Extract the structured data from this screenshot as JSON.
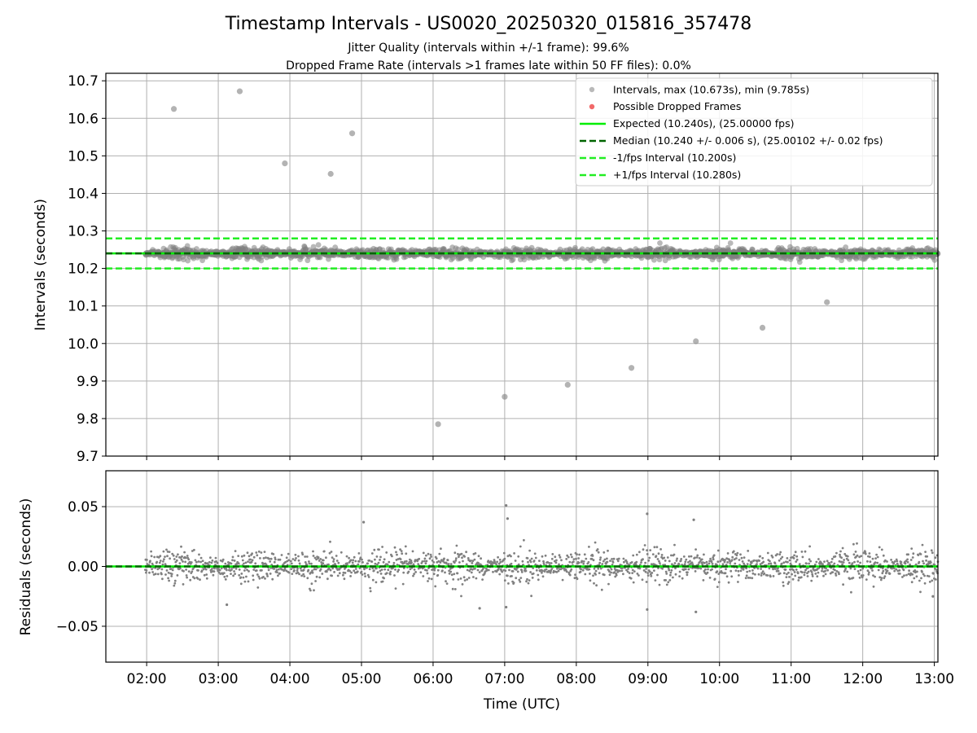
{
  "figure": {
    "title": "Timestamp Intervals - US0020_20250320_015816_357478",
    "subtitle_1": "Jitter Quality (intervals within +/-1 frame): 99.6%",
    "subtitle_2": "Dropped Frame Rate (intervals >1 frames late within 50 FF files): 0.0%"
  },
  "chart_data": [
    {
      "type": "scatter",
      "panel": "top",
      "xlabel": "",
      "ylabel": "Intervals (seconds)",
      "x_unit": "hours UTC",
      "xlim": [
        1.43,
        13.05
      ],
      "ylim": [
        9.7,
        10.72
      ],
      "grid": true,
      "legend_position": "top-right",
      "yticks": [
        "9.7",
        "9.8",
        "9.9",
        "10.0",
        "10.1",
        "10.2",
        "10.3",
        "10.4",
        "10.5",
        "10.6",
        "10.7"
      ],
      "yticks_values": [
        9.7,
        9.8,
        9.9,
        10.0,
        10.1,
        10.2,
        10.3,
        10.4,
        10.5,
        10.6,
        10.7
      ],
      "xticks_values": [
        2,
        3,
        4,
        5,
        6,
        7,
        8,
        9,
        10,
        11,
        12,
        13
      ],
      "legend": [
        "Intervals, max (10.673s), min (9.785s)",
        "Possible Dropped Frames",
        "Expected (10.240s), (25.00000 fps)",
        "Median (10.240 +/- 0.006 s), (25.00102 +/- 0.02 fps)",
        "-1/fps Interval (10.200s)",
        "+1/fps Interval (10.280s)"
      ],
      "series_style": {
        "intervals_color": "#808080",
        "dropped_color": "#ee4444",
        "expected_color": "#00ee00",
        "median_color": "#006400",
        "bound_color": "#22ee22"
      },
      "reference_lines": {
        "expected": 10.24,
        "median": 10.24,
        "lower": 10.2,
        "upper": 10.28
      },
      "cluster": {
        "x_start": 1.98,
        "x_end": 13.05,
        "center": 10.24,
        "spread": 0.006
      },
      "outliers": [
        {
          "x": 2.38,
          "y": 10.625
        },
        {
          "x": 3.3,
          "y": 10.672
        },
        {
          "x": 3.93,
          "y": 10.48
        },
        {
          "x": 4.57,
          "y": 10.452
        },
        {
          "x": 4.87,
          "y": 10.56
        },
        {
          "x": 6.07,
          "y": 9.785
        },
        {
          "x": 7.0,
          "y": 9.858
        },
        {
          "x": 7.88,
          "y": 9.89
        },
        {
          "x": 8.77,
          "y": 9.935
        },
        {
          "x": 9.67,
          "y": 10.006
        },
        {
          "x": 10.6,
          "y": 10.042
        },
        {
          "x": 11.5,
          "y": 10.11
        }
      ]
    },
    {
      "type": "scatter",
      "panel": "bottom",
      "xlabel": "Time (UTC)",
      "ylabel": "Residuals (seconds)",
      "xlim": [
        1.43,
        13.05
      ],
      "ylim": [
        -0.08,
        0.08
      ],
      "grid": true,
      "yticks": [
        "−0.05",
        "0.00",
        "0.05"
      ],
      "yticks_values": [
        -0.05,
        0.0,
        0.05
      ],
      "xticks": [
        "02:00",
        "03:00",
        "04:00",
        "05:00",
        "06:00",
        "07:00",
        "08:00",
        "09:00",
        "10:00",
        "11:00",
        "12:00",
        "13:00"
      ],
      "xticks_values": [
        2,
        3,
        4,
        5,
        6,
        7,
        8,
        9,
        10,
        11,
        12,
        13
      ],
      "reference_lines": {
        "expected": 0.0,
        "median": 0.0
      },
      "cluster": {
        "x_start": 1.98,
        "x_end": 13.05,
        "center": 0.0,
        "spread": 0.006
      },
      "outliers": [
        {
          "x": 7.02,
          "y": 0.051
        },
        {
          "x": 7.04,
          "y": 0.04
        },
        {
          "x": 8.99,
          "y": 0.044
        },
        {
          "x": 9.64,
          "y": 0.039
        },
        {
          "x": 5.03,
          "y": 0.037
        },
        {
          "x": 6.65,
          "y": -0.035
        },
        {
          "x": 7.02,
          "y": -0.034
        },
        {
          "x": 8.99,
          "y": -0.036
        },
        {
          "x": 9.67,
          "y": -0.038
        },
        {
          "x": 3.12,
          "y": -0.032
        },
        {
          "x": 12.98,
          "y": -0.025
        }
      ]
    }
  ]
}
